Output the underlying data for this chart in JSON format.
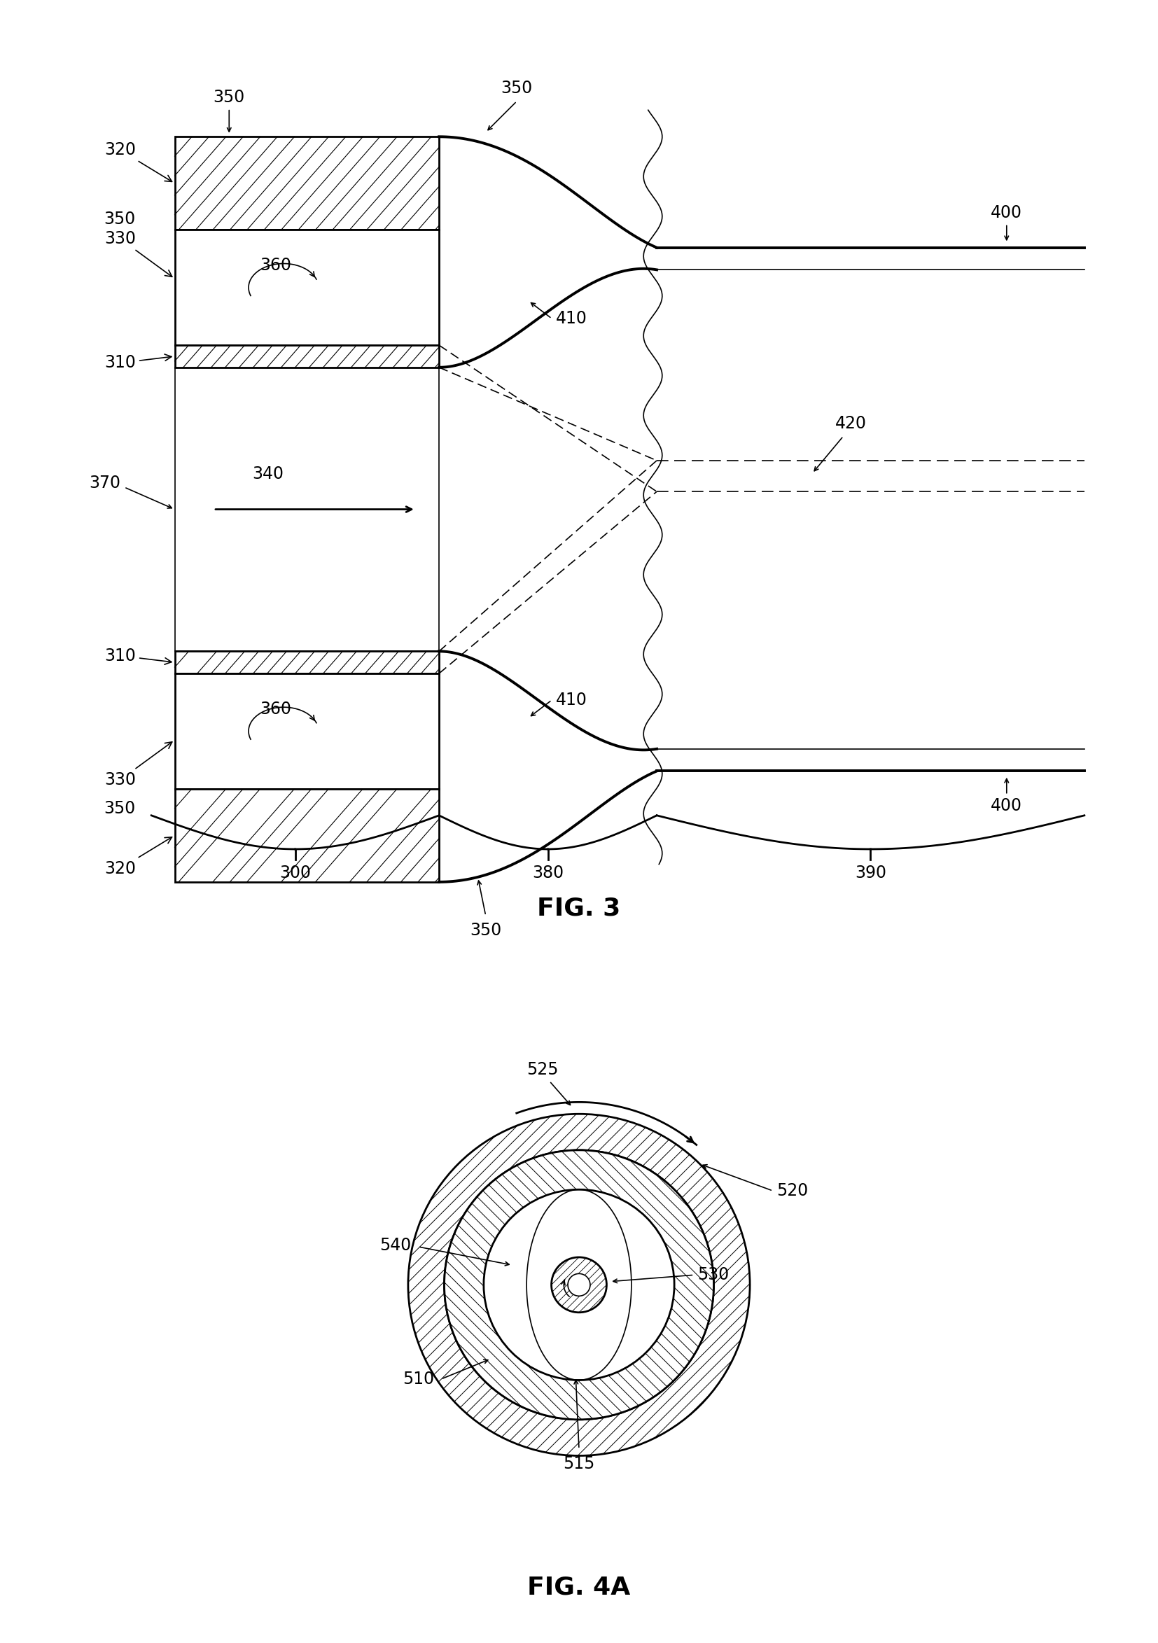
{
  "bg_color": "#ffffff",
  "line_color": "#000000",
  "fig3_title": "FIG. 3",
  "fig4a_title": "FIG. 4A",
  "font_size": 17,
  "title_font_size": 26
}
